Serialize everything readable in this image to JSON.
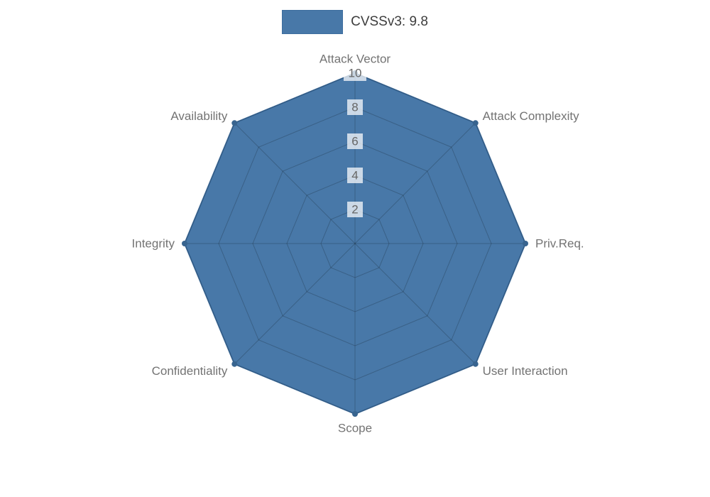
{
  "chart_data": {
    "type": "radar",
    "title": "",
    "categories": [
      "Attack Vector",
      "Attack Complexity",
      "Priv.Req.",
      "User Interaction",
      "Scope",
      "Confidentiality",
      "Integrity",
      "Availability"
    ],
    "series": [
      {
        "name": "CVSSv3: 9.8",
        "values": [
          10,
          10,
          10,
          10,
          10,
          10,
          10,
          10
        ]
      }
    ],
    "scale": {
      "min": 0,
      "max": 10,
      "ticks": [
        2,
        4,
        6,
        8,
        10
      ]
    },
    "grid": "on",
    "legend_position": "top",
    "colors": {
      "series_fill": "#4878a8",
      "series_border": "#3d6d9e",
      "point": "#38648f",
      "grid_line": "rgba(0,0,0,0.20)",
      "tick_text": "#666666",
      "tick_backdrop": "rgba(255,255,255,0.72)",
      "axis_label_text": "#737373",
      "legend_text": "#3d3d3d"
    }
  }
}
